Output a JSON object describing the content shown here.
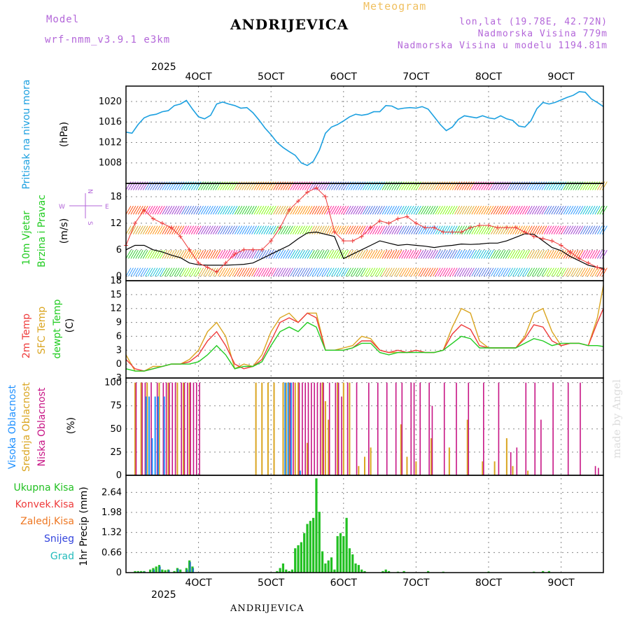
{
  "header": {
    "model_label": "Model",
    "model_name": "wrf-nmm_v3.9.1 e3km",
    "meteogram_label": "Meteogram",
    "station_title": "ANDRIJEVICA",
    "lonlat": "lon,lat (19.78E, 42.72N)",
    "altitude": "Nadmorska Visina 779m",
    "model_altitude": "Nadmorska Visina u modelu 1194.81m",
    "year": "2025",
    "footer_station": "ANDRIJEVICA",
    "watermark": "made by Angel"
  },
  "x_axis": {
    "ticks": [
      "4OCT",
      "5OCT",
      "6OCT",
      "7OCT",
      "8OCT",
      "9OCT"
    ],
    "tick_hours": [
      24,
      48,
      72,
      96,
      120,
      144
    ],
    "range_hours": [
      0,
      158
    ],
    "year_label": "2025"
  },
  "colors": {
    "pressure": "#1ca0e0",
    "temp2m": "#ee3b3b",
    "sfc": "#daa520",
    "dewpt": "#22cc22",
    "low": "#c71585",
    "mid": "#daa520",
    "high": "#1e90ff",
    "precip": "#22c022",
    "gust": "#ee3b3b"
  },
  "chart_data": [
    {
      "type": "line",
      "name": "pressure",
      "ylabel": "(hPa)",
      "vlabel": "Pritisak na nivou mora",
      "ylim": [
        1004,
        1023
      ],
      "yticks": [
        "1020",
        "1016",
        "1012",
        "1008"
      ],
      "ytick_values": [
        1020,
        1016,
        1012,
        1008
      ],
      "hours": [
        0,
        2,
        4,
        6,
        8,
        10,
        12,
        14,
        16,
        18,
        20,
        22,
        24,
        26,
        28,
        30,
        32,
        34,
        36,
        38,
        40,
        42,
        44,
        46,
        48,
        50,
        52,
        54,
        56,
        58,
        60,
        62,
        64,
        66,
        68,
        70,
        72,
        74,
        76,
        78,
        80,
        82,
        84,
        86,
        88,
        90,
        92,
        94,
        96,
        98,
        100,
        102,
        104,
        106,
        108,
        110,
        112,
        114,
        116,
        118,
        120,
        122,
        124,
        126,
        128,
        130,
        132,
        134,
        136,
        138,
        140,
        142,
        144,
        146,
        148,
        150,
        152,
        154,
        156,
        158
      ],
      "values": [
        1014,
        1013.8,
        1015.5,
        1016.8,
        1017.3,
        1017.5,
        1018,
        1018.2,
        1019.2,
        1019.5,
        1020.2,
        1018.5,
        1017,
        1016.6,
        1017.3,
        1019.5,
        1019.9,
        1019.5,
        1019.2,
        1018.7,
        1018.8,
        1017.8,
        1016.4,
        1014.8,
        1013.5,
        1012,
        1011,
        1010.2,
        1009.5,
        1008,
        1007.5,
        1008.3,
        1010.5,
        1013.8,
        1015,
        1015.5,
        1016.2,
        1017,
        1017.5,
        1017.3,
        1017.5,
        1018,
        1018,
        1019.2,
        1019.1,
        1018.5,
        1018.7,
        1018.8,
        1018.7,
        1019,
        1018.5,
        1017,
        1015.5,
        1014.3,
        1015,
        1016.5,
        1017.2,
        1017,
        1016.8,
        1017.2,
        1016.8,
        1016.6,
        1017.2,
        1016.6,
        1016.3,
        1015.2,
        1015,
        1016.2,
        1018.6,
        1019.8,
        1019.5,
        1019.8,
        1020.3,
        1020.8,
        1021.2,
        1021.9,
        1021.8,
        1020.5,
        1019.8,
        1019
      ]
    },
    {
      "type": "line",
      "name": "wind",
      "ylabel": "(m/s)",
      "vlabel1": "10m Vjetar",
      "vlabel2": "Brzina i Pravac",
      "compass": {
        "n": "N",
        "s": "S",
        "w": "W",
        "e": "E"
      },
      "ylim": [
        -1,
        21
      ],
      "yticks": [
        "18",
        "12",
        "6",
        "0"
      ],
      "ytick_values": [
        18,
        12,
        6,
        0
      ],
      "hours": [
        0,
        3,
        6,
        9,
        12,
        15,
        18,
        21,
        24,
        27,
        30,
        33,
        36,
        39,
        42,
        45,
        48,
        51,
        54,
        57,
        60,
        63,
        66,
        69,
        72,
        75,
        78,
        81,
        84,
        87,
        90,
        93,
        96,
        99,
        102,
        105,
        108,
        111,
        114,
        117,
        120,
        123,
        126,
        129,
        132,
        135,
        138,
        141,
        144,
        147,
        150,
        153,
        156,
        158
      ],
      "speed": [
        6,
        7,
        7,
        6,
        5.5,
        4.8,
        4.2,
        3,
        2.6,
        2.5,
        2.5,
        2.5,
        2.6,
        2.7,
        3,
        4,
        5,
        6,
        7,
        8.5,
        9.8,
        10,
        9.5,
        9,
        4,
        5,
        6,
        7,
        8,
        7.5,
        7,
        7.2,
        7,
        6.8,
        6.5,
        6.8,
        7,
        7.3,
        7.2,
        7.3,
        7.5,
        7.5,
        8,
        8.8,
        9.6,
        9.5,
        8,
        6.5,
        5.8,
        4.5,
        3.5,
        2.5,
        2,
        1.8
      ],
      "gust": [
        7,
        12,
        15,
        13,
        12,
        11,
        9,
        6,
        3,
        2,
        1,
        3,
        5,
        6,
        6,
        6,
        8,
        11,
        15,
        17,
        19,
        20,
        18,
        10,
        8,
        8,
        9,
        11,
        12.5,
        12,
        13,
        13.5,
        12,
        11,
        11,
        10,
        10,
        10,
        11,
        11.5,
        11.5,
        11,
        11,
        11,
        10,
        9,
        8.5,
        8,
        7,
        5.5,
        4,
        3,
        2,
        1.5
      ]
    },
    {
      "type": "line",
      "name": "temperature",
      "ylabel": "(C)",
      "vlabels": [
        "2m Temp",
        "SFC Temp",
        "dewpt Temp"
      ],
      "ylim": [
        -3,
        18
      ],
      "yticks": [
        "18",
        "15",
        "12",
        "9",
        "6",
        "3",
        "0",
        "-3"
      ],
      "ytick_values": [
        18,
        15,
        12,
        9,
        6,
        3,
        0,
        -3
      ],
      "hours": [
        0,
        3,
        6,
        9,
        12,
        15,
        18,
        21,
        24,
        27,
        30,
        33,
        36,
        39,
        42,
        45,
        48,
        51,
        54,
        57,
        60,
        63,
        66,
        69,
        72,
        75,
        78,
        81,
        84,
        87,
        90,
        93,
        96,
        99,
        102,
        105,
        108,
        111,
        114,
        117,
        120,
        123,
        126,
        129,
        132,
        135,
        138,
        141,
        144,
        147,
        150,
        153,
        156,
        158
      ],
      "t2m": [
        1,
        -1,
        -1.5,
        -1,
        -0.5,
        0,
        0,
        0.5,
        2,
        5,
        7,
        4,
        0,
        -1,
        -0.5,
        1,
        5,
        9,
        10,
        9,
        11,
        10,
        3,
        3,
        3,
        3.5,
        5,
        5,
        3,
        2.5,
        3,
        2.5,
        3,
        2.5,
        2.5,
        3,
        6.5,
        8.5,
        7.5,
        4,
        3.5,
        3.5,
        3.5,
        3.5,
        5.5,
        8.5,
        8,
        5,
        4,
        4.5,
        4.5,
        4,
        9,
        12
      ],
      "sfc": [
        2,
        -1.5,
        -1.5,
        -0.5,
        -0.5,
        0,
        0,
        1,
        3,
        7,
        9,
        6,
        -1,
        0,
        -0.5,
        2,
        7,
        10,
        11,
        9,
        11,
        11,
        3,
        3,
        3.5,
        4,
        6,
        5.5,
        3,
        2.5,
        2.5,
        2.5,
        3,
        2.5,
        2.5,
        3,
        8,
        12,
        11,
        5,
        3.5,
        3.5,
        3.5,
        3.5,
        6,
        11,
        12,
        7,
        4,
        4.5,
        4.5,
        4,
        10,
        17
      ],
      "dewpt": [
        -1,
        -1.5,
        -1.5,
        -1,
        -0.5,
        0,
        0,
        0,
        0.5,
        2,
        4,
        2,
        -1,
        -0.5,
        -0.5,
        0.5,
        4,
        7,
        8,
        7,
        9,
        8,
        3,
        3,
        3,
        3.5,
        4.5,
        4.5,
        2.5,
        2,
        2.5,
        2.5,
        2.5,
        2.5,
        2.5,
        3,
        4.5,
        6,
        5.5,
        3.5,
        3.5,
        3.5,
        3.5,
        3.5,
        4.5,
        5.5,
        5,
        4,
        4.5,
        4.5,
        4.5,
        4,
        4,
        3.8
      ]
    },
    {
      "type": "bar",
      "name": "cloud",
      "ylabel": "(%)",
      "vlabels": [
        "Visoka Oblacnost",
        "Srednja Oblacnost",
        "Niska Oblacnost"
      ],
      "ylim": [
        0,
        105
      ],
      "yticks": [
        "100",
        "75",
        "50",
        "25",
        "0"
      ],
      "ytick_values": [
        100,
        75,
        50,
        25,
        0
      ],
      "low": [
        [
          3,
          100
        ],
        [
          5,
          100
        ],
        [
          6,
          100
        ],
        [
          8,
          100
        ],
        [
          10,
          100
        ],
        [
          12,
          100
        ],
        [
          13,
          100
        ],
        [
          14,
          100
        ],
        [
          15,
          100
        ],
        [
          16,
          100
        ],
        [
          18,
          100
        ],
        [
          19,
          100
        ],
        [
          20,
          100
        ],
        [
          21,
          100
        ],
        [
          22,
          100
        ],
        [
          23,
          100
        ],
        [
          24,
          100
        ],
        [
          54,
          100
        ],
        [
          55,
          100
        ],
        [
          57,
          100
        ],
        [
          58,
          100
        ],
        [
          59,
          100
        ],
        [
          60,
          100
        ],
        [
          61,
          100
        ],
        [
          62,
          100
        ],
        [
          63,
          100
        ],
        [
          64,
          100
        ],
        [
          65,
          100
        ],
        [
          67,
          100
        ],
        [
          69,
          100
        ],
        [
          70,
          100
        ],
        [
          71,
          85
        ],
        [
          73,
          100
        ],
        [
          76,
          100
        ],
        [
          80,
          100
        ],
        [
          83,
          100
        ],
        [
          86,
          100
        ],
        [
          89,
          100
        ],
        [
          91,
          100
        ],
        [
          94,
          100
        ],
        [
          95,
          100
        ],
        [
          97,
          100
        ],
        [
          100,
          100
        ],
        [
          101,
          75
        ],
        [
          105,
          100
        ],
        [
          109,
          100
        ],
        [
          113,
          100
        ],
        [
          118,
          100
        ],
        [
          123,
          100
        ],
        [
          127,
          25
        ],
        [
          129,
          30
        ],
        [
          132,
          100
        ],
        [
          135,
          100
        ],
        [
          137,
          60
        ],
        [
          141,
          100
        ],
        [
          146,
          100
        ],
        [
          150,
          100
        ],
        [
          155,
          10
        ],
        [
          156,
          8
        ]
      ],
      "mid": [
        [
          3,
          100
        ],
        [
          5,
          100
        ],
        [
          7,
          100
        ],
        [
          11,
          100
        ],
        [
          14,
          100
        ],
        [
          17,
          100
        ],
        [
          19,
          100
        ],
        [
          21,
          100
        ],
        [
          43,
          100
        ],
        [
          45,
          100
        ],
        [
          47,
          100
        ],
        [
          49,
          100
        ],
        [
          52,
          100
        ],
        [
          53,
          100
        ],
        [
          54,
          100
        ],
        [
          56,
          100
        ],
        [
          57,
          100
        ],
        [
          60,
          35
        ],
        [
          65,
          100
        ],
        [
          66,
          80
        ],
        [
          67,
          60
        ],
        [
          70,
          100
        ],
        [
          72,
          100
        ],
        [
          74,
          100
        ],
        [
          77,
          10
        ],
        [
          79,
          20
        ],
        [
          81,
          30
        ],
        [
          91,
          55
        ],
        [
          93,
          20
        ],
        [
          96,
          15
        ],
        [
          101,
          40
        ],
        [
          107,
          30
        ],
        [
          113,
          60
        ],
        [
          118,
          15
        ],
        [
          122,
          15
        ],
        [
          126,
          40
        ],
        [
          128,
          10
        ],
        [
          133,
          5
        ]
      ],
      "high": [
        [
          7,
          85
        ],
        [
          8,
          85
        ],
        [
          9,
          40
        ],
        [
          10,
          85
        ],
        [
          11,
          85
        ],
        [
          13,
          85
        ],
        [
          53,
          100
        ],
        [
          54,
          100
        ],
        [
          55,
          100
        ],
        [
          58,
          5
        ]
      ]
    },
    {
      "type": "bar",
      "name": "precip",
      "ylabel": "1hr Precip (mm)",
      "legend": [
        "Ukupna Kisa",
        "Konvek.Kisa",
        "Zaledj.Kisa",
        "Snijeg",
        "Grad"
      ],
      "legend_colors": [
        "#22c022",
        "#ee3b3b",
        "#ee7722",
        "#3344dd",
        "#22bbbb"
      ],
      "ylim": [
        0,
        3.2
      ],
      "yticks": [
        "2.64",
        "1.98",
        "1.32",
        "0.66",
        "0"
      ],
      "ytick_values": [
        2.64,
        1.98,
        1.32,
        0.66,
        0
      ],
      "total": [
        [
          3,
          0.05
        ],
        [
          4,
          0.05
        ],
        [
          5,
          0.05
        ],
        [
          6,
          0.05
        ],
        [
          8,
          0.1
        ],
        [
          9,
          0.15
        ],
        [
          10,
          0.2
        ],
        [
          11,
          0.25
        ],
        [
          12,
          0.1
        ],
        [
          13,
          0.08
        ],
        [
          14,
          0.1
        ],
        [
          16,
          0.05
        ],
        [
          17,
          0.15
        ],
        [
          18,
          0.1
        ],
        [
          20,
          0.15
        ],
        [
          21,
          0.4
        ],
        [
          22,
          0.2
        ],
        [
          50,
          0.05
        ],
        [
          51,
          0.15
        ],
        [
          52,
          0.3
        ],
        [
          53,
          0.1
        ],
        [
          54,
          0.05
        ],
        [
          55,
          0.1
        ],
        [
          56,
          0.8
        ],
        [
          57,
          0.9
        ],
        [
          58,
          1.0
        ],
        [
          59,
          1.3
        ],
        [
          60,
          1.6
        ],
        [
          61,
          1.7
        ],
        [
          62,
          1.8
        ],
        [
          63,
          3.1
        ],
        [
          64,
          2.0
        ],
        [
          65,
          0.7
        ],
        [
          66,
          0.3
        ],
        [
          67,
          0.4
        ],
        [
          68,
          0.5
        ],
        [
          69,
          0.1
        ],
        [
          70,
          1.2
        ],
        [
          71,
          1.3
        ],
        [
          72,
          1.2
        ],
        [
          73,
          1.8
        ],
        [
          74,
          0.8
        ],
        [
          75,
          0.6
        ],
        [
          76,
          0.3
        ],
        [
          77,
          0.25
        ],
        [
          78,
          0.1
        ],
        [
          79,
          0.05
        ],
        [
          85,
          0.05
        ],
        [
          86,
          0.1
        ],
        [
          87,
          0.05
        ],
        [
          90,
          0.03
        ],
        [
          92,
          0.05
        ],
        [
          100,
          0.05
        ],
        [
          105,
          0.03
        ],
        [
          120,
          0.03
        ],
        [
          135,
          0.03
        ],
        [
          138,
          0.05
        ],
        [
          140,
          0.05
        ]
      ],
      "snow": [
        [
          4,
          0.02
        ],
        [
          6,
          0.03
        ],
        [
          9,
          0.1
        ],
        [
          11,
          0.2
        ],
        [
          14,
          0.08
        ],
        [
          17,
          0.12
        ],
        [
          20,
          0.1
        ],
        [
          21,
          0.35
        ],
        [
          22,
          0.15
        ]
      ]
    }
  ]
}
